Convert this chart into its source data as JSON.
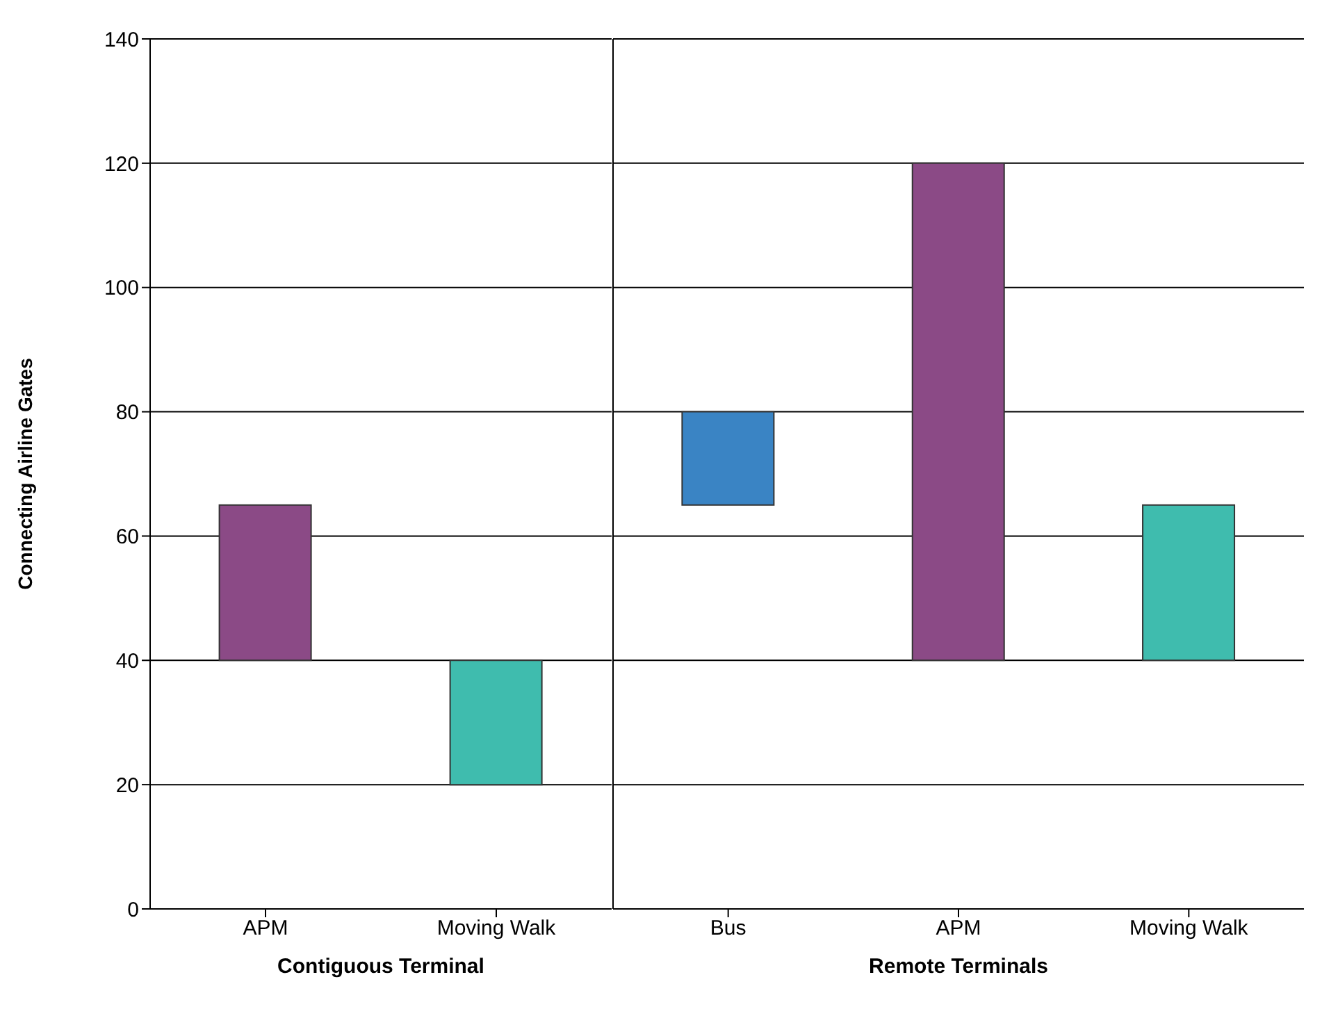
{
  "chart_data": [
    {
      "type": "bar",
      "categories": [
        "APM",
        "Moving Walk"
      ],
      "values": [
        25,
        20
      ],
      "base": [
        40,
        20
      ],
      "colors": [
        "#8b4a86",
        "#3fbcae"
      ],
      "xlabel": "Contiguous Terminal",
      "ylabel": "Connecting Airline Gates",
      "ylim": [
        0,
        140
      ],
      "yticks": [
        0,
        20,
        40,
        60,
        80,
        100,
        120,
        140
      ],
      "grid": "y"
    },
    {
      "type": "bar",
      "categories": [
        "Bus",
        "APM",
        "Moving Walk"
      ],
      "values": [
        15,
        80,
        25
      ],
      "base": [
        65,
        40,
        40
      ],
      "colors": [
        "#3a84c4",
        "#8b4a86",
        "#3fbcae"
      ],
      "xlabel": "Remote Terminals",
      "ylim": [
        0,
        140
      ],
      "yticks": [
        0,
        20,
        40,
        60,
        80,
        100,
        120,
        140
      ],
      "grid": "y",
      "tick_labels": "x"
    }
  ]
}
